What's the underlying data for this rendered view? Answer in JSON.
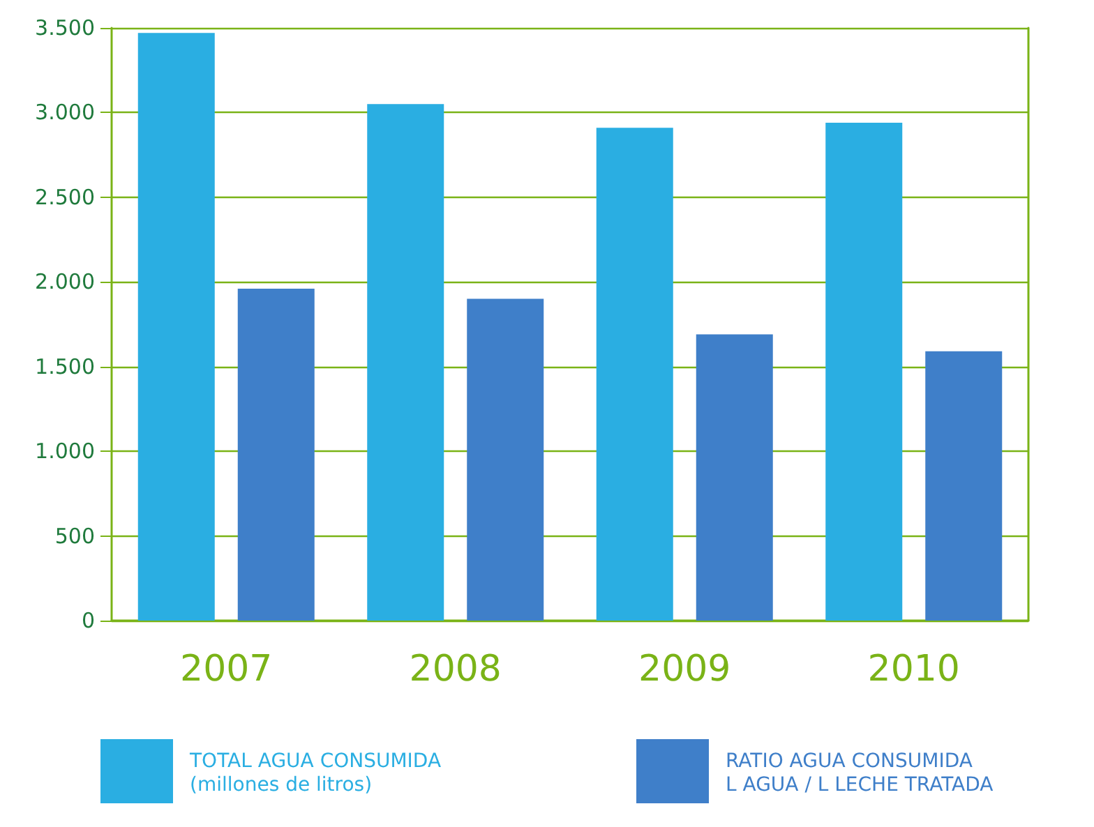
{
  "chart_data": {
    "type": "bar",
    "categories": [
      "2007",
      "2008",
      "2009",
      "2010"
    ],
    "series": [
      {
        "name": "TOTAL AGUA CONSUMIDA\n(millones de litros)",
        "color": "#2aaee2",
        "values": [
          3470,
          3050,
          2910,
          2940
        ]
      },
      {
        "name": "RATIO AGUA CONSUMIDA\nL AGUA / L LECHE TRATADA",
        "color": "#3f7fc9",
        "values": [
          1960,
          1900,
          1690,
          1590
        ]
      }
    ],
    "ylim": [
      0,
      3500
    ],
    "yticks": [
      0,
      {
        "value": 500,
        "label": "500"
      },
      {
        "value": 1000,
        "label": "1.000"
      },
      {
        "value": 1500,
        "label": "1.500"
      },
      {
        "value": 2000,
        "label": "2.000"
      },
      {
        "value": 2500,
        "label": "2.500"
      },
      {
        "value": 3000,
        "label": "3.000"
      },
      {
        "value": 3500,
        "label": "3.500"
      }
    ],
    "grid": "y",
    "legend": "bottom"
  }
}
